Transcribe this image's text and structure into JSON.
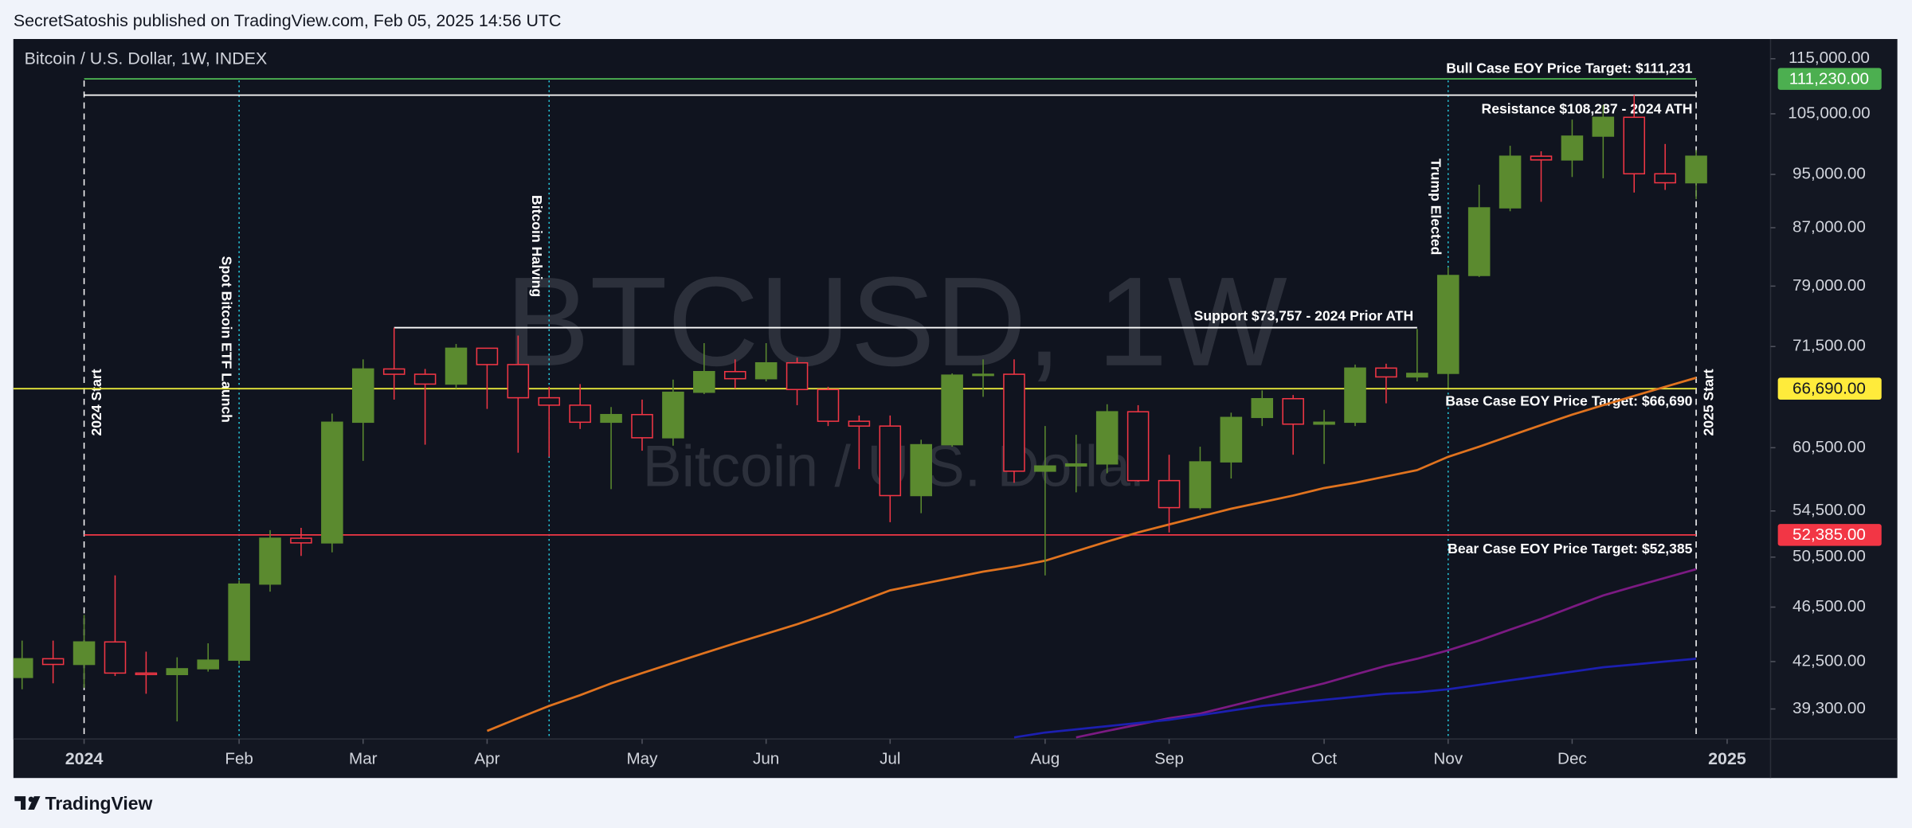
{
  "header": {
    "publisher": "SecretSatoshis published on TradingView.com, Feb 05, 2025 14:56 UTC"
  },
  "footer": {
    "brand": "TradingView"
  },
  "chart_data": {
    "type": "candlestick",
    "title": "Bitcoin / U.S. Dollar, 1W, INDEX",
    "watermark": "BTCUSD, 1W",
    "watermark_subtitle": "Bitcoin / U.S. Dollar",
    "log_scale": true,
    "ylim": [
      37400,
      118800
    ],
    "yticks": [
      {
        "value": 115000,
        "label": "115,000.00"
      },
      {
        "value": 105000,
        "label": "105,000.00"
      },
      {
        "value": 95000,
        "label": "95,000.00"
      },
      {
        "value": 87000,
        "label": "87,000.00"
      },
      {
        "value": 79000,
        "label": "79,000.00"
      },
      {
        "value": 71500,
        "label": "71,500.00"
      },
      {
        "value": 60500,
        "label": "60,500.00"
      },
      {
        "value": 54500,
        "label": "54,500.00"
      },
      {
        "value": 50500,
        "label": "50,500.00"
      },
      {
        "value": 46500,
        "label": "46,500.00"
      },
      {
        "value": 42500,
        "label": "42,500.00"
      },
      {
        "value": 39300,
        "label": "39,300.00"
      }
    ],
    "xlim": [
      -0.28,
      56.4
    ],
    "xticks": [
      {
        "value": 2,
        "label": "2024"
      },
      {
        "value": 7,
        "label": "Feb"
      },
      {
        "value": 11,
        "label": "Mar"
      },
      {
        "value": 15,
        "label": "Apr"
      },
      {
        "value": 20,
        "label": "May"
      },
      {
        "value": 24,
        "label": "Jun"
      },
      {
        "value": 28,
        "label": "Jul"
      },
      {
        "value": 33,
        "label": "Aug"
      },
      {
        "value": 37,
        "label": "Sep"
      },
      {
        "value": 42,
        "label": "Oct"
      },
      {
        "value": 46,
        "label": "Nov"
      },
      {
        "value": 50,
        "label": "Dec"
      },
      {
        "value": 55,
        "label": "2025"
      }
    ],
    "up_color": "#5b8a2f",
    "down_color": "#f23645",
    "open": [
      41400,
      42700,
      42300,
      43900,
      41700,
      41600,
      42000,
      42600,
      48300,
      52100,
      51700,
      63100,
      68900,
      68300,
      67200,
      71300,
      69400,
      65700,
      64900,
      63100,
      63900,
      61500,
      66300,
      68600,
      67800,
      69600,
      66600,
      63200,
      62700,
      55900,
      60800,
      68200,
      68300,
      58200,
      58700,
      58900,
      64200,
      57300,
      54800,
      59100,
      63600,
      65600,
      62900,
      63100,
      69000,
      68000,
      68400,
      80400,
      89900,
      97900,
      97300,
      101200,
      104400,
      95100,
      93700
    ],
    "high": [
      44000,
      44000,
      45900,
      49000,
      43200,
      42800,
      43800,
      48600,
      52800,
      53000,
      64000,
      70000,
      73750,
      68900,
      71800,
      71300,
      72800,
      66900,
      67200,
      64700,
      65500,
      67700,
      71900,
      70000,
      71900,
      70200,
      66900,
      63800,
      63800,
      61300,
      68400,
      70000,
      70000,
      62700,
      61800,
      65000,
      64900,
      59800,
      60600,
      64100,
      66500,
      66000,
      64400,
      69400,
      69500,
      73600,
      81500,
      93400,
      99600,
      98700,
      104000,
      106500,
      108300,
      99900,
      98900
    ],
    "low": [
      40600,
      41000,
      40700,
      41500,
      40300,
      38500,
      41800,
      42300,
      47700,
      50600,
      50900,
      59200,
      65500,
      60800,
      66700,
      64500,
      60000,
      59600,
      62400,
      56500,
      60200,
      60700,
      66100,
      66700,
      67500,
      64900,
      62700,
      58400,
      53500,
      54300,
      60600,
      65800,
      57100,
      49000,
      56200,
      58000,
      57200,
      52600,
      54600,
      57500,
      62700,
      59800,
      58900,
      62700,
      65100,
      67500,
      66800,
      80200,
      89400,
      90800,
      94600,
      94400,
      92200,
      92600,
      91200
    ],
    "close": [
      42700,
      42300,
      43900,
      41700,
      41600,
      42000,
      42600,
      48300,
      52100,
      51700,
      63100,
      68900,
      68300,
      67200,
      71300,
      69400,
      65700,
      64900,
      63100,
      63900,
      61500,
      66300,
      68600,
      67800,
      69600,
      66600,
      63200,
      62700,
      55900,
      60800,
      68200,
      68300,
      58200,
      58700,
      58900,
      64200,
      57300,
      54800,
      59100,
      63600,
      65600,
      62900,
      63100,
      69000,
      68000,
      68400,
      80400,
      89900,
      97900,
      97300,
      101200,
      104400,
      95100,
      93700,
      97900
    ],
    "lines": [
      {
        "color": "#e0731f",
        "values": [
          null,
          null,
          null,
          null,
          null,
          null,
          null,
          null,
          null,
          null,
          null,
          null,
          null,
          null,
          null,
          37900,
          38700,
          39500,
          40200,
          41000,
          41700,
          42400,
          43100,
          43800,
          44500,
          45200,
          46000,
          46900,
          47800,
          48300,
          48800,
          49300,
          49700,
          50200,
          51000,
          51800,
          52600,
          53300,
          54000,
          54700,
          55300,
          55900,
          56600,
          57100,
          57700,
          58300,
          59600,
          60600,
          61700,
          62800,
          63900,
          64900,
          65900,
          66900,
          67900
        ]
      },
      {
        "color": "#7b1a82",
        "values": [
          null,
          null,
          null,
          null,
          null,
          null,
          null,
          null,
          null,
          null,
          null,
          null,
          null,
          null,
          null,
          null,
          null,
          null,
          null,
          null,
          null,
          null,
          null,
          null,
          null,
          null,
          null,
          null,
          null,
          null,
          null,
          null,
          null,
          null,
          37500,
          37900,
          38300,
          38700,
          39000,
          39500,
          40000,
          40500,
          41000,
          41600,
          42200,
          42700,
          43300,
          44000,
          44800,
          45600,
          46500,
          47400,
          48100,
          48800,
          49500
        ]
      },
      {
        "color": "#1c1fb0",
        "values": [
          null,
          null,
          null,
          null,
          null,
          null,
          null,
          null,
          null,
          null,
          null,
          null,
          null,
          null,
          null,
          null,
          null,
          null,
          null,
          null,
          null,
          null,
          null,
          null,
          null,
          null,
          null,
          null,
          null,
          null,
          null,
          null,
          37500,
          37800,
          38000,
          38200,
          38400,
          38600,
          38900,
          39200,
          39500,
          39700,
          39900,
          40100,
          40300,
          40400,
          40600,
          40900,
          41200,
          41500,
          41800,
          42100,
          42300,
          42500,
          42700
        ]
      }
    ],
    "levels": [
      {
        "label": "Bull Case EOY Price Target: $111,231",
        "value": 111231,
        "color": "#4caf50",
        "from": 2,
        "to": 54
      },
      {
        "label": "Resistance $108,287 - 2024 ATH",
        "value": 108287,
        "color": "#ffffff",
        "from": 2,
        "to": 54
      },
      {
        "label": "Support $73,757 - 2024 Prior ATH",
        "value": 73757,
        "color": "#ffffff",
        "from": 12,
        "to": 45
      },
      {
        "label": "Base Case EOY Price Target: $66,690",
        "value": 66690,
        "color": "#e6e63a",
        "from": -0.28,
        "to": 54
      },
      {
        "label": "Bear Case EOY Price Target: $52,385",
        "value": 52385,
        "color": "#f23645",
        "from": 2,
        "to": 54
      }
    ],
    "price_tags": [
      {
        "value": 111230,
        "label": "111,230.00",
        "color": "#4caf50"
      },
      {
        "value": 66690,
        "label": "66,690.00",
        "color": "#ffeb3b"
      },
      {
        "value": 52385,
        "label": "52,385.00",
        "color": "#f23645"
      }
    ],
    "events": [
      {
        "text": "2024 Start",
        "x": 2,
        "color": "#ffffff"
      },
      {
        "text": "Spot Bitcoin ETF Launch",
        "x": 7,
        "color": "#26c6da"
      },
      {
        "text": "Bitcoin Halving",
        "x": 17,
        "color": "#26c6da"
      },
      {
        "text": "Trump Elected",
        "x": 46,
        "color": "#26c6da"
      },
      {
        "text": "2025 Start",
        "x": 54,
        "color": "#ffffff"
      }
    ]
  }
}
